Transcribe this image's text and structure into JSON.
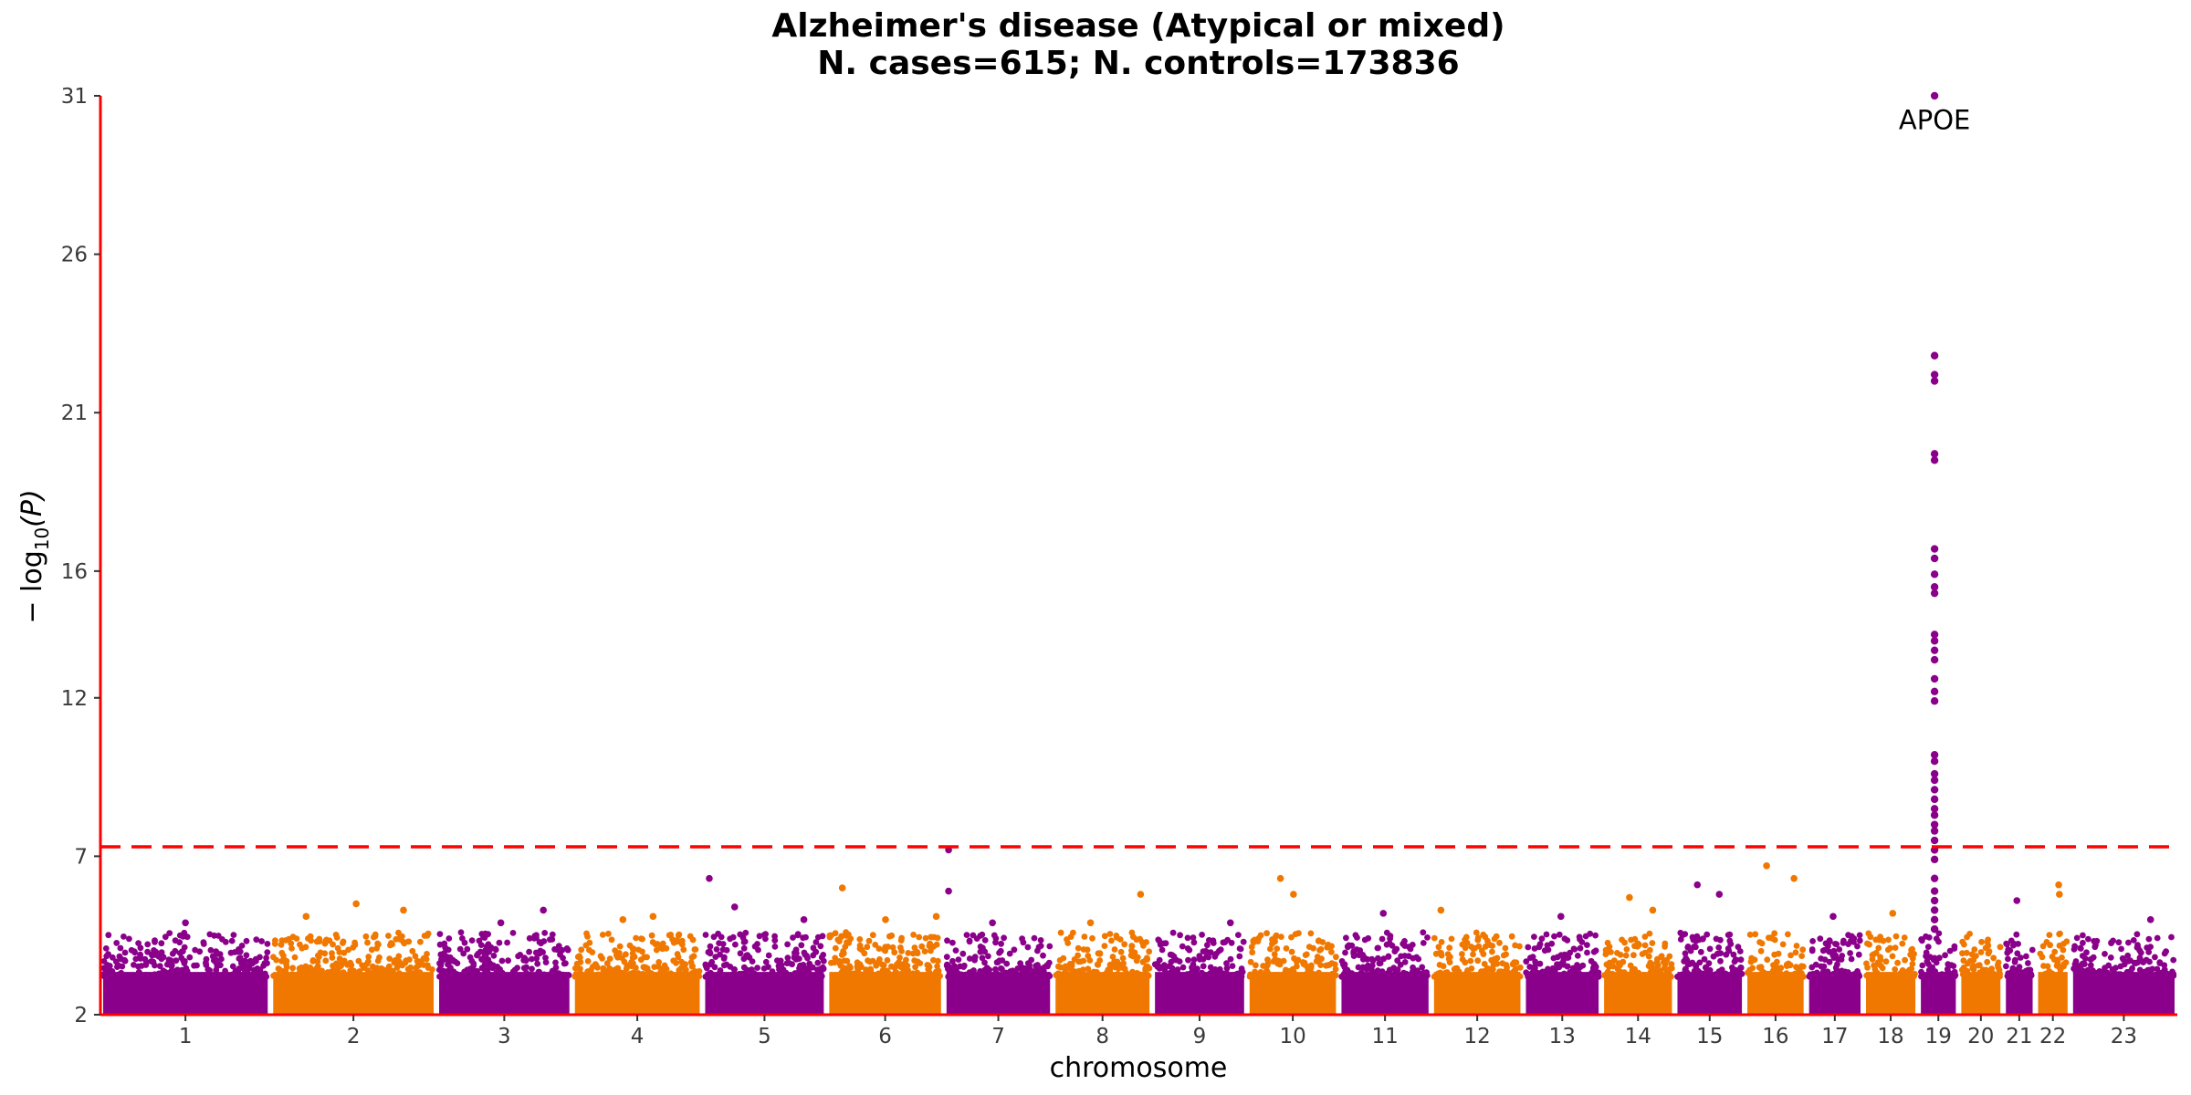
{
  "chart_data": {
    "type": "scatter",
    "title": "Alzheimer's disease (Atypical or mixed)",
    "subtitle": "N. cases=615; N. controls=173836",
    "xlabel": "chromosome",
    "ylabel_base": "− log",
    "ylabel_sub": "10",
    "ylabel_arg": "(P)",
    "ylim": [
      2,
      31
    ],
    "yticks": [
      2,
      7,
      12,
      16,
      21,
      26,
      31
    ],
    "significance_threshold": 7.3,
    "colors": {
      "odd": "#8b008b",
      "even": "#f07800",
      "threshold": "#ff0000",
      "axis": "#ff0000"
    },
    "chromosomes": [
      {
        "label": "1",
        "start": 0,
        "end": 248
      },
      {
        "label": "2",
        "start": 248,
        "end": 490
      },
      {
        "label": "3",
        "start": 490,
        "end": 688
      },
      {
        "label": "4",
        "start": 688,
        "end": 878
      },
      {
        "label": "5",
        "start": 878,
        "end": 1059
      },
      {
        "label": "6",
        "start": 1059,
        "end": 1230
      },
      {
        "label": "7",
        "start": 1230,
        "end": 1389
      },
      {
        "label": "8",
        "start": 1389,
        "end": 1534
      },
      {
        "label": "9",
        "start": 1534,
        "end": 1672
      },
      {
        "label": "10",
        "start": 1672,
        "end": 1806
      },
      {
        "label": "11",
        "start": 1806,
        "end": 1941
      },
      {
        "label": "12",
        "start": 1941,
        "end": 2075
      },
      {
        "label": "13",
        "start": 2075,
        "end": 2189
      },
      {
        "label": "14",
        "start": 2189,
        "end": 2296
      },
      {
        "label": "15",
        "start": 2296,
        "end": 2398
      },
      {
        "label": "16",
        "start": 2398,
        "end": 2488
      },
      {
        "label": "17",
        "start": 2488,
        "end": 2571
      },
      {
        "label": "18",
        "start": 2571,
        "end": 2651
      },
      {
        "label": "19",
        "start": 2651,
        "end": 2710
      },
      {
        "label": "20",
        "start": 2710,
        "end": 2775
      },
      {
        "label": "21",
        "start": 2775,
        "end": 2822
      },
      {
        "label": "22",
        "start": 2822,
        "end": 2873
      },
      {
        "label": "23",
        "start": 2873,
        "end": 3029
      }
    ],
    "peaks": [
      {
        "x": 124,
        "y": 4.9
      },
      {
        "x": 300,
        "y": 5.1
      },
      {
        "x": 373,
        "y": 5.5
      },
      {
        "x": 442,
        "y": 5.3
      },
      {
        "x": 584,
        "y": 4.9
      },
      {
        "x": 646,
        "y": 5.3
      },
      {
        "x": 762,
        "y": 5.0
      },
      {
        "x": 806,
        "y": 5.1
      },
      {
        "x": 888,
        "y": 6.3
      },
      {
        "x": 925,
        "y": 5.4
      },
      {
        "x": 1026,
        "y": 5.0
      },
      {
        "x": 1082,
        "y": 6.0
      },
      {
        "x": 1145,
        "y": 5.0
      },
      {
        "x": 1219,
        "y": 5.1
      },
      {
        "x": 1237,
        "y": 7.2
      },
      {
        "x": 1237,
        "y": 5.9
      },
      {
        "x": 1301,
        "y": 4.9
      },
      {
        "x": 1444,
        "y": 4.9
      },
      {
        "x": 1517,
        "y": 5.8
      },
      {
        "x": 1648,
        "y": 4.9
      },
      {
        "x": 1721,
        "y": 6.3
      },
      {
        "x": 1740,
        "y": 5.8
      },
      {
        "x": 1871,
        "y": 5.2
      },
      {
        "x": 1955,
        "y": 5.3
      },
      {
        "x": 2130,
        "y": 5.1
      },
      {
        "x": 2230,
        "y": 5.7
      },
      {
        "x": 2264,
        "y": 5.3
      },
      {
        "x": 2329,
        "y": 6.1
      },
      {
        "x": 2361,
        "y": 5.8
      },
      {
        "x": 2430,
        "y": 6.7
      },
      {
        "x": 2470,
        "y": 6.3
      },
      {
        "x": 2527,
        "y": 5.1
      },
      {
        "x": 2614,
        "y": 5.2
      },
      {
        "x": 2795,
        "y": 5.6
      },
      {
        "x": 2856,
        "y": 6.1
      },
      {
        "x": 2857,
        "y": 5.8
      },
      {
        "x": 2990,
        "y": 5.0
      }
    ],
    "highlight_column": {
      "x": 2675,
      "y": [
        31,
        22.8,
        22.2,
        22.0,
        19.7,
        19.5,
        16.7,
        16.4,
        15.9,
        15.5,
        15.3,
        14.0,
        13.8,
        13.5,
        13.2,
        12.6,
        12.2,
        11.9,
        10.2,
        10.0,
        9.6,
        9.4,
        9.1,
        8.8,
        8.5,
        8.3,
        8.0,
        7.8,
        7.5,
        7.2,
        6.9,
        6.3,
        5.9,
        5.6,
        5.3,
        5.0,
        4.7
      ]
    },
    "annotations": [
      {
        "label": "APOE",
        "x": 2675,
        "y": 30.3
      }
    ]
  }
}
